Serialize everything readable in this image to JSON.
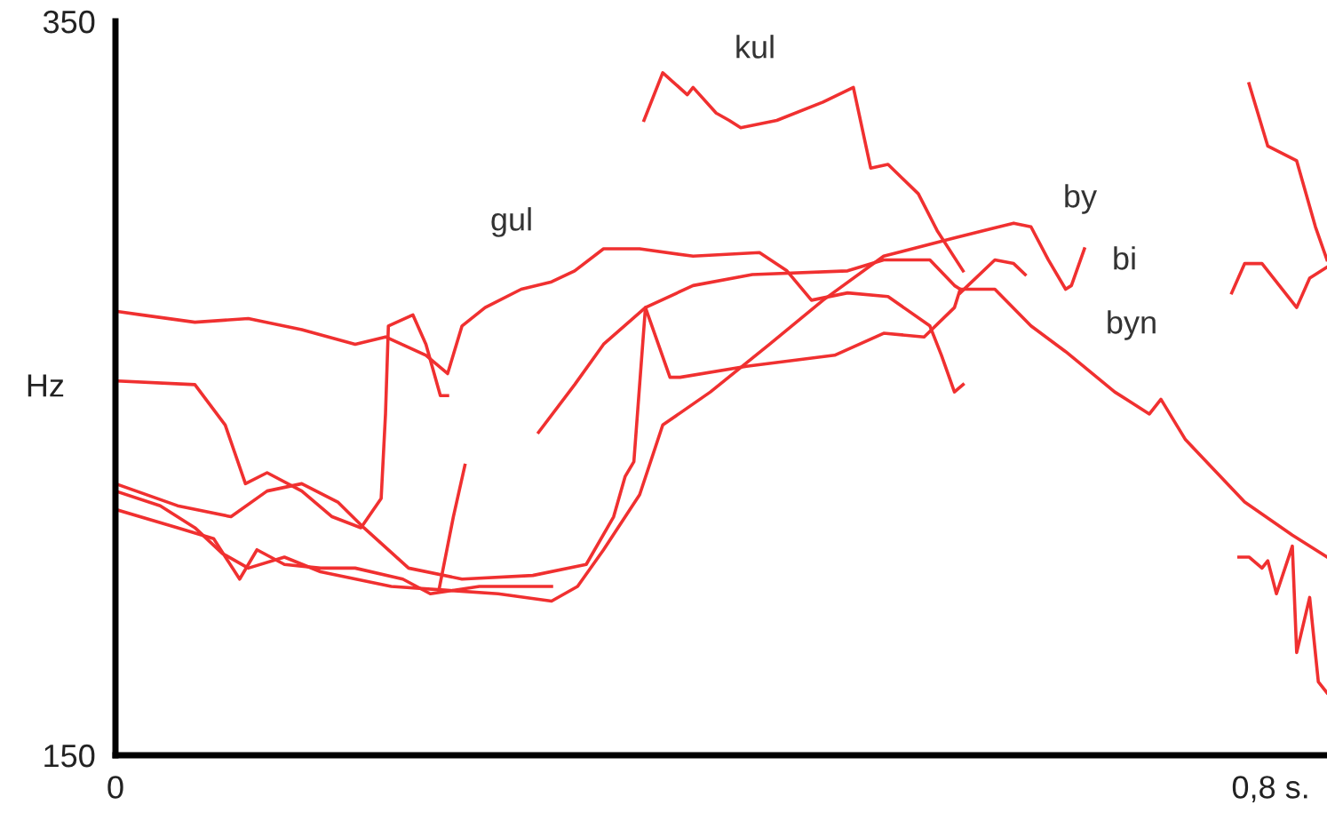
{
  "chart_data": {
    "type": "line",
    "ylabel": "Hz",
    "xlim": [
      0,
      0.839
    ],
    "ylim": [
      150,
      350
    ],
    "yticks": [
      150,
      350
    ],
    "xticks": [
      {
        "value": 0,
        "label": "0"
      },
      {
        "value": 0.8,
        "label": "0,8 s."
      }
    ],
    "annotations": [
      "gul",
      "kul",
      "by",
      "bi",
      "byn"
    ],
    "series": [
      {
        "color": "#f03030",
        "x": [
          0,
          0.018,
          0.055,
          0.092,
          0.129,
          0.166,
          0.187,
          0.215,
          0.23,
          0.24,
          0.256,
          0.281,
          0.302,
          0.318,
          0.338,
          0.363,
          0.4,
          0.446,
          0.465,
          0.482,
          0.507,
          0.535,
          0.564,
          0.572,
          0.581,
          0.587
        ],
        "values": [
          271,
          270,
          268,
          269,
          266,
          262,
          264,
          259,
          254,
          267,
          272,
          277,
          279,
          282,
          288,
          288,
          286,
          287,
          282,
          274,
          276,
          275,
          267,
          259,
          249,
          251
        ]
      },
      {
        "color": "#f03030",
        "x": [
          0.002,
          0.055,
          0.076,
          0.09,
          0.105,
          0.129,
          0.15,
          0.17,
          0.184,
          0.187,
          0.189,
          0.206,
          0.215,
          0.225,
          0.23
        ],
        "values": [
          252,
          251,
          240,
          224,
          227,
          222,
          215,
          212,
          220,
          243,
          267,
          270,
          262,
          248,
          248
        ]
      },
      {
        "color": "#f03030",
        "x": [
          0,
          0.043,
          0.08,
          0.105,
          0.129,
          0.154,
          0.172,
          0.203,
          0.24,
          0.289,
          0.326,
          0.345,
          0.353,
          0.359,
          0.367,
          0.384,
          0.391,
          0.437,
          0.498,
          0.532,
          0.56,
          0.581,
          0.585
        ],
        "values": [
          224,
          218,
          215,
          222,
          224,
          219,
          212,
          201,
          198,
          199,
          202,
          215,
          226,
          230,
          272,
          253,
          253,
          256,
          259,
          265,
          264,
          272,
          277
        ]
      },
      {
        "color": "#f03030",
        "x": [
          0,
          0.031,
          0.055,
          0.074,
          0.092,
          0.117,
          0.142,
          0.191,
          0.228,
          0.265,
          0.302,
          0.32,
          0.338,
          0.363,
          0.379,
          0.412,
          0.453,
          0.49,
          0.532,
          0.581,
          0.622,
          0.634,
          0.646,
          0.658,
          0.662,
          0.671
        ],
        "values": [
          222,
          218,
          212,
          205,
          201,
          204,
          200,
          196,
          195,
          194,
          192,
          196,
          206,
          221,
          240,
          249,
          262,
          274,
          286,
          291,
          295,
          294,
          285,
          277,
          278,
          288
        ]
      },
      {
        "color": "#f03030",
        "x": [
          0,
          0.043,
          0.068,
          0.086,
          0.098,
          0.117,
          0.142,
          0.166,
          0.199,
          0.218,
          0.252,
          0.289,
          0.302
        ],
        "values": [
          217,
          212,
          209,
          198,
          206,
          202,
          201,
          201,
          198,
          194,
          196,
          196,
          196
        ]
      },
      {
        "color": "#f03030",
        "x": [
          0.293,
          0.318,
          0.338,
          0.367,
          0.4,
          0.441,
          0.507,
          0.532,
          0.564,
          0.581,
          0.585,
          0.609,
          0.634,
          0.658,
          0.692,
          0.716,
          0.724,
          0.741,
          0.782,
          0.815,
          0.839
        ],
        "values": [
          238,
          251,
          262,
          272,
          278,
          281,
          282,
          285,
          285,
          278,
          277,
          277,
          267,
          260,
          249,
          243,
          247,
          236,
          219,
          210,
          204
        ]
      },
      {
        "color": "#f03030",
        "x": [
          0.224,
          0.234,
          0.242
        ],
        "values": [
          195,
          215,
          229
        ]
      },
      {
        "color": "#f03030",
        "x": [
          0.585,
          0.609,
          0.622,
          0.63
        ],
        "values": [
          276,
          285,
          284,
          281
        ]
      },
      {
        "color": "#f03030",
        "x": [
          0.366,
          0.379,
          0.396,
          0.4,
          0.416,
          0.425,
          0.433,
          0.458,
          0.49,
          0.511,
          0.523,
          0.535,
          0.556,
          0.569,
          0.587
        ],
        "values": [
          323,
          336,
          330,
          332,
          325,
          323,
          321,
          323,
          328,
          332,
          310,
          311,
          303,
          293,
          282
        ]
      },
      {
        "color": "#f03030",
        "x": [
          0.785,
          0.798,
          0.818,
          0.831,
          0.839
        ],
        "values": [
          333,
          316,
          312,
          294,
          285
        ]
      },
      {
        "color": "#f03030",
        "x": [
          0.773,
          0.782,
          0.794,
          0.818,
          0.827,
          0.839
        ],
        "values": [
          276,
          284,
          284,
          272,
          280,
          283
        ]
      },
      {
        "color": "#f03030",
        "x": [
          0.778,
          0.785,
          0.794,
          0.798,
          0.804,
          0.815,
          0.818,
          0.827,
          0.833,
          0.839
        ],
        "values": [
          204,
          204,
          201,
          203,
          194,
          207,
          178,
          193,
          170,
          167
        ]
      }
    ]
  }
}
